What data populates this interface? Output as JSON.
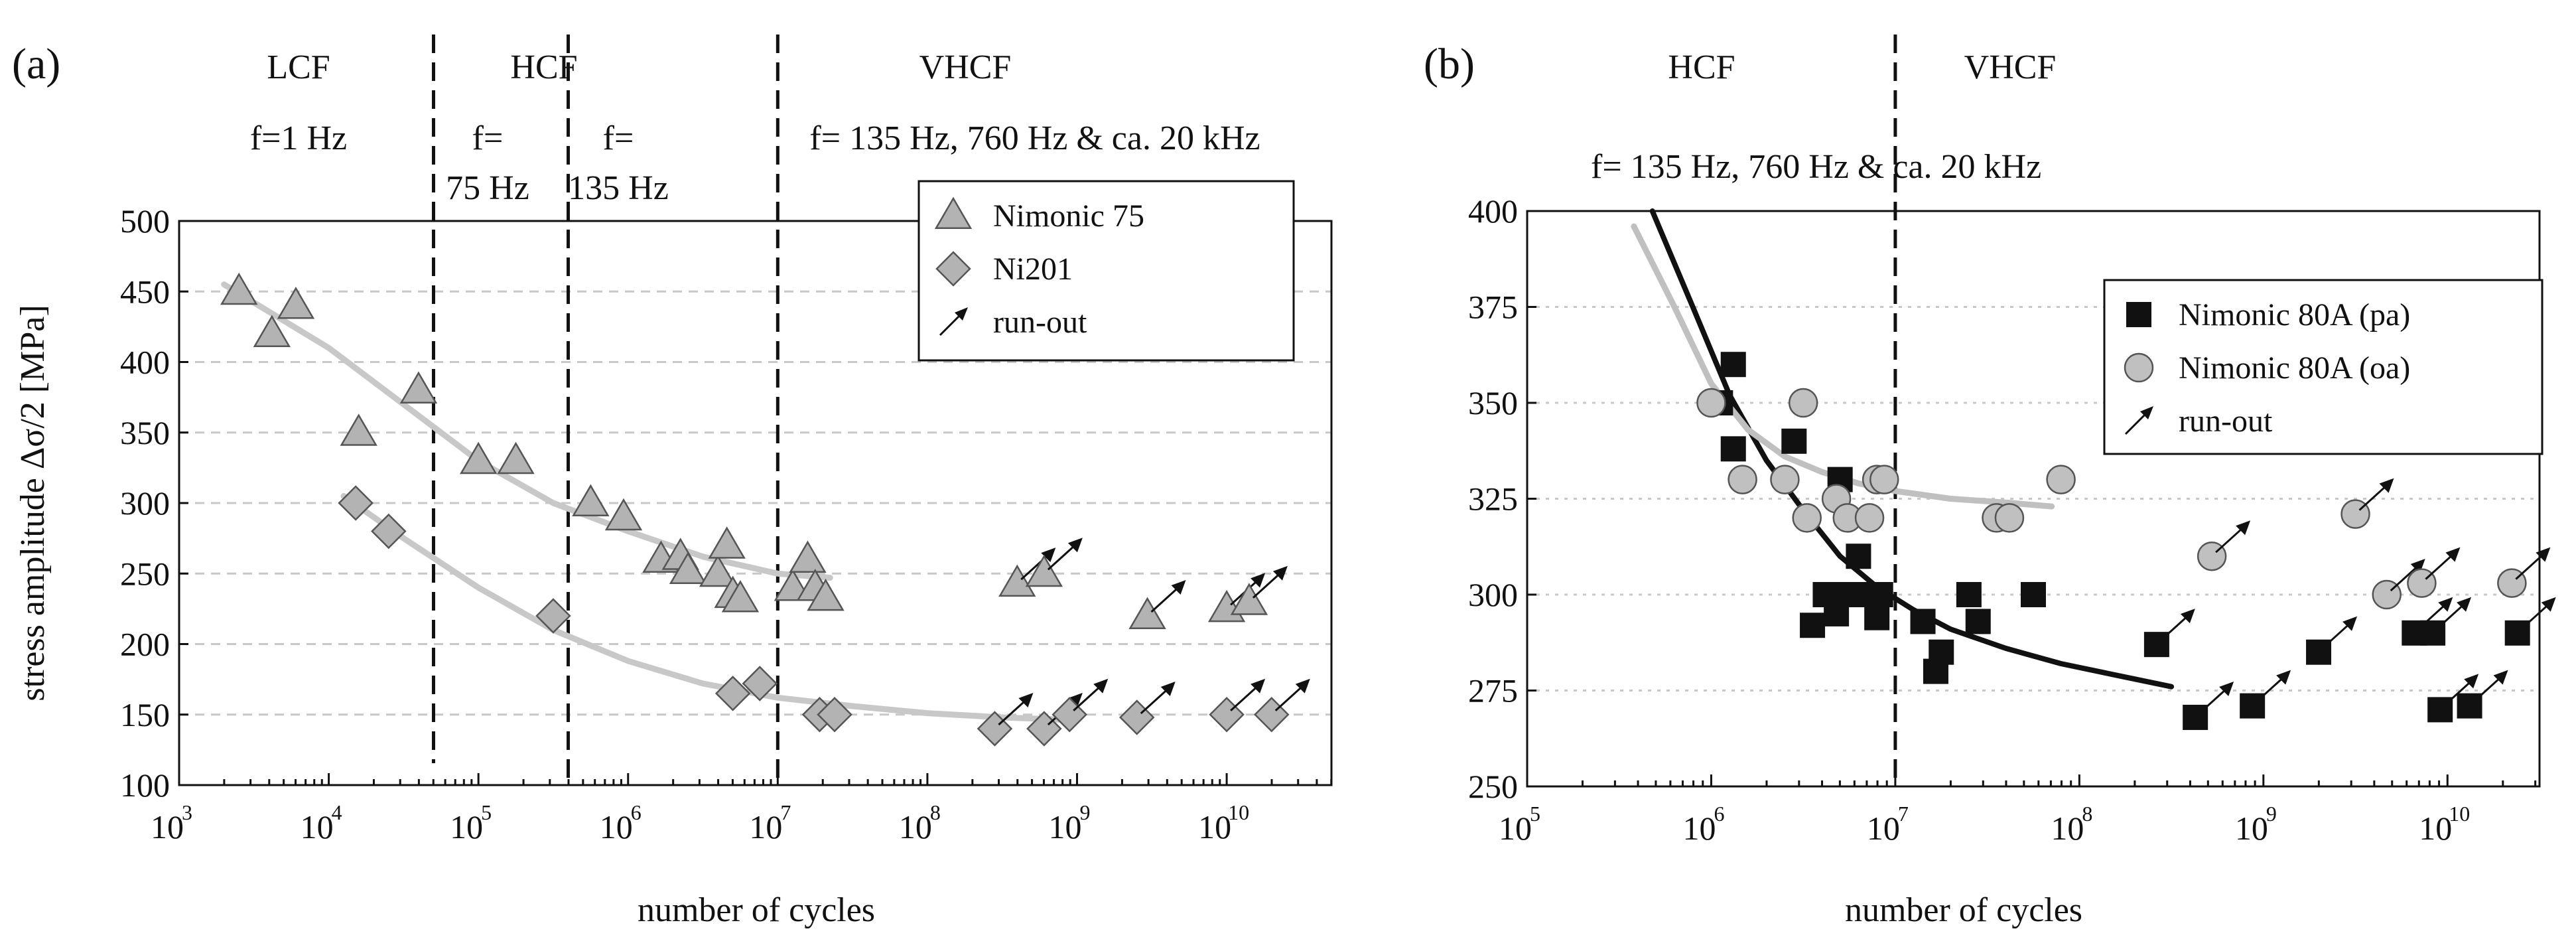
{
  "chart_data": [
    {
      "panel": "(a)",
      "type": "scatter",
      "xscale": "log",
      "xlabel": "number of cycles",
      "ylabel": "stress amplitude Δσ/2  [MPa]",
      "xlim_exp": [
        3,
        10.7
      ],
      "ylim": [
        100,
        500
      ],
      "yticks": [
        100,
        150,
        200,
        250,
        300,
        350,
        400,
        450,
        500
      ],
      "xtick_base": "10",
      "xtick_exps": [
        "3",
        "4",
        "5",
        "6",
        "7",
        "8",
        "9",
        "10"
      ],
      "grid": "horizontal dashed",
      "regions": [
        {
          "label": "LCF",
          "freq": "f=1 Hz"
        },
        {
          "label": "HCF",
          "freq": "f="
        },
        {
          "label": "",
          "freq": "75 Hz"
        },
        {
          "label": "",
          "freq": "f="
        },
        {
          "label": "",
          "freq": "135 Hz"
        },
        {
          "label": "VHCF",
          "freq": "f= 135 Hz, 760 Hz & ca. 20 kHz"
        }
      ],
      "boundaries_exp": [
        4.7,
        5.6,
        7.0
      ],
      "legend": [
        {
          "name": "Nimonic 75",
          "marker": "triangle"
        },
        {
          "name": "Ni201",
          "marker": "diamond"
        },
        {
          "name": "run-out",
          "marker": "arrow"
        }
      ],
      "series": [
        {
          "name": "Nimonic 75",
          "marker": "triangle",
          "color": "#b3b3b3",
          "points": [
            {
              "x_exp": 3.4,
              "y": 450
            },
            {
              "x_exp": 3.62,
              "y": 420
            },
            {
              "x_exp": 3.78,
              "y": 440
            },
            {
              "x_exp": 4.2,
              "y": 350
            },
            {
              "x_exp": 4.6,
              "y": 380
            },
            {
              "x_exp": 5.0,
              "y": 330
            },
            {
              "x_exp": 5.25,
              "y": 330
            },
            {
              "x_exp": 5.75,
              "y": 300
            },
            {
              "x_exp": 5.97,
              "y": 290
            },
            {
              "x_exp": 6.22,
              "y": 260
            },
            {
              "x_exp": 6.35,
              "y": 262
            },
            {
              "x_exp": 6.4,
              "y": 252
            },
            {
              "x_exp": 6.6,
              "y": 250
            },
            {
              "x_exp": 6.66,
              "y": 270
            },
            {
              "x_exp": 6.7,
              "y": 235
            },
            {
              "x_exp": 6.75,
              "y": 232
            },
            {
              "x_exp": 7.1,
              "y": 240
            },
            {
              "x_exp": 7.2,
              "y": 260
            },
            {
              "x_exp": 7.25,
              "y": 240
            },
            {
              "x_exp": 7.32,
              "y": 233
            }
          ],
          "runouts": [
            {
              "x_exp": 8.6,
              "y": 243
            },
            {
              "x_exp": 8.78,
              "y": 250
            },
            {
              "x_exp": 9.47,
              "y": 220
            },
            {
              "x_exp": 10.0,
              "y": 225
            },
            {
              "x_exp": 10.15,
              "y": 230
            }
          ]
        },
        {
          "name": "Ni201",
          "marker": "diamond",
          "color": "#b3b3b3",
          "points": [
            {
              "x_exp": 4.18,
              "y": 300
            },
            {
              "x_exp": 4.4,
              "y": 280
            },
            {
              "x_exp": 5.5,
              "y": 220
            },
            {
              "x_exp": 6.7,
              "y": 165
            },
            {
              "x_exp": 6.88,
              "y": 172
            },
            {
              "x_exp": 7.28,
              "y": 150
            },
            {
              "x_exp": 7.38,
              "y": 150
            }
          ],
          "runouts": [
            {
              "x_exp": 8.45,
              "y": 140
            },
            {
              "x_exp": 8.78,
              "y": 140
            },
            {
              "x_exp": 8.95,
              "y": 150
            },
            {
              "x_exp": 9.4,
              "y": 148
            },
            {
              "x_exp": 10.0,
              "y": 150
            },
            {
              "x_exp": 10.3,
              "y": 150
            }
          ]
        }
      ],
      "fits": [
        {
          "color": "#c8c8c8",
          "points": [
            [
              3.3,
              455
            ],
            [
              4.0,
              410
            ],
            [
              4.5,
              370
            ],
            [
              5.0,
              330
            ],
            [
              5.5,
              300
            ],
            [
              6.0,
              280
            ],
            [
              6.5,
              262
            ],
            [
              7.0,
              250
            ],
            [
              7.35,
              247
            ]
          ]
        },
        {
          "color": "#c8c8c8",
          "points": [
            [
              4.1,
              305
            ],
            [
              4.5,
              275
            ],
            [
              5.0,
              240
            ],
            [
              5.5,
              210
            ],
            [
              6.0,
              188
            ],
            [
              6.5,
              172
            ],
            [
              7.0,
              162
            ],
            [
              7.5,
              156
            ],
            [
              8.0,
              151
            ],
            [
              8.5,
              148
            ],
            [
              9.0,
              146
            ]
          ]
        }
      ]
    },
    {
      "panel": "(b)",
      "type": "scatter",
      "xscale": "log",
      "xlabel": "number of cycles",
      "ylabel": "",
      "xlim_exp": [
        5,
        10.5
      ],
      "ylim": [
        250,
        400
      ],
      "yticks": [
        250,
        275,
        300,
        325,
        350,
        375,
        400
      ],
      "xtick_base": "10",
      "xtick_exps": [
        "5",
        "6",
        "7",
        "8",
        "9",
        "10"
      ],
      "grid": "horizontal dotted",
      "regions": [
        {
          "label": "HCF",
          "freq": ""
        },
        {
          "label": "VHCF",
          "freq": ""
        }
      ],
      "annotation": "f= 135 Hz, 760 Hz & ca. 20 kHz",
      "boundaries_exp": [
        7.0
      ],
      "legend": [
        {
          "name": "Nimonic 80A (pa)",
          "marker": "square"
        },
        {
          "name": "Nimonic 80A (oa)",
          "marker": "circle"
        },
        {
          "name": "run-out",
          "marker": "arrow"
        }
      ],
      "series": [
        {
          "name": "Nimonic 80A (pa)",
          "marker": "square",
          "color": "#111111",
          "points": [
            {
              "x_exp": 6.05,
              "y": 350
            },
            {
              "x_exp": 6.12,
              "y": 360
            },
            {
              "x_exp": 6.12,
              "y": 338
            },
            {
              "x_exp": 6.45,
              "y": 340
            },
            {
              "x_exp": 6.55,
              "y": 292
            },
            {
              "x_exp": 6.62,
              "y": 300
            },
            {
              "x_exp": 6.68,
              "y": 295
            },
            {
              "x_exp": 6.7,
              "y": 330
            },
            {
              "x_exp": 6.75,
              "y": 300
            },
            {
              "x_exp": 6.8,
              "y": 310
            },
            {
              "x_exp": 6.85,
              "y": 300
            },
            {
              "x_exp": 6.9,
              "y": 294
            },
            {
              "x_exp": 6.92,
              "y": 300
            },
            {
              "x_exp": 7.15,
              "y": 293
            },
            {
              "x_exp": 7.22,
              "y": 280
            },
            {
              "x_exp": 7.25,
              "y": 285
            },
            {
              "x_exp": 7.4,
              "y": 300
            },
            {
              "x_exp": 7.45,
              "y": 293
            },
            {
              "x_exp": 7.75,
              "y": 300
            }
          ],
          "runouts": [
            {
              "x_exp": 8.42,
              "y": 287
            },
            {
              "x_exp": 8.63,
              "y": 268
            },
            {
              "x_exp": 8.94,
              "y": 271
            },
            {
              "x_exp": 9.3,
              "y": 285
            },
            {
              "x_exp": 9.82,
              "y": 290
            },
            {
              "x_exp": 9.92,
              "y": 290
            },
            {
              "x_exp": 9.96,
              "y": 270
            },
            {
              "x_exp": 10.12,
              "y": 271
            },
            {
              "x_exp": 10.38,
              "y": 290
            }
          ]
        },
        {
          "name": "Nimonic 80A (oa)",
          "marker": "circle",
          "color": "#c0c0c0",
          "points": [
            {
              "x_exp": 6.0,
              "y": 350
            },
            {
              "x_exp": 6.17,
              "y": 330
            },
            {
              "x_exp": 6.4,
              "y": 330
            },
            {
              "x_exp": 6.5,
              "y": 350
            },
            {
              "x_exp": 6.52,
              "y": 320
            },
            {
              "x_exp": 6.68,
              "y": 325
            },
            {
              "x_exp": 6.74,
              "y": 320
            },
            {
              "x_exp": 6.86,
              "y": 320
            },
            {
              "x_exp": 6.9,
              "y": 330
            },
            {
              "x_exp": 6.94,
              "y": 330
            },
            {
              "x_exp": 7.55,
              "y": 320
            },
            {
              "x_exp": 7.62,
              "y": 320
            },
            {
              "x_exp": 7.9,
              "y": 330
            }
          ],
          "runouts": [
            {
              "x_exp": 8.72,
              "y": 310
            },
            {
              "x_exp": 9.67,
              "y": 300
            },
            {
              "x_exp": 9.86,
              "y": 303
            },
            {
              "x_exp": 9.5,
              "y": 321
            },
            {
              "x_exp": 10.35,
              "y": 303
            }
          ]
        }
      ],
      "fits": [
        {
          "color": "#111111",
          "points": [
            [
              5.68,
              400
            ],
            [
              5.9,
              375
            ],
            [
              6.1,
              352
            ],
            [
              6.3,
              335
            ],
            [
              6.5,
              322
            ],
            [
              6.7,
              310
            ],
            [
              6.9,
              302
            ],
            [
              7.1,
              296
            ],
            [
              7.3,
              291
            ],
            [
              7.6,
              286
            ],
            [
              7.9,
              282
            ],
            [
              8.2,
              279
            ],
            [
              8.5,
              276
            ]
          ]
        },
        {
          "color": "#c0c0c0",
          "points": [
            [
              5.58,
              396
            ],
            [
              5.8,
              375
            ],
            [
              6.0,
              355
            ],
            [
              6.2,
              343
            ],
            [
              6.4,
              336
            ],
            [
              6.6,
              332
            ],
            [
              6.8,
              329
            ],
            [
              7.0,
              327
            ],
            [
              7.3,
              325
            ],
            [
              7.6,
              324
            ],
            [
              7.85,
              323
            ]
          ]
        }
      ]
    }
  ]
}
